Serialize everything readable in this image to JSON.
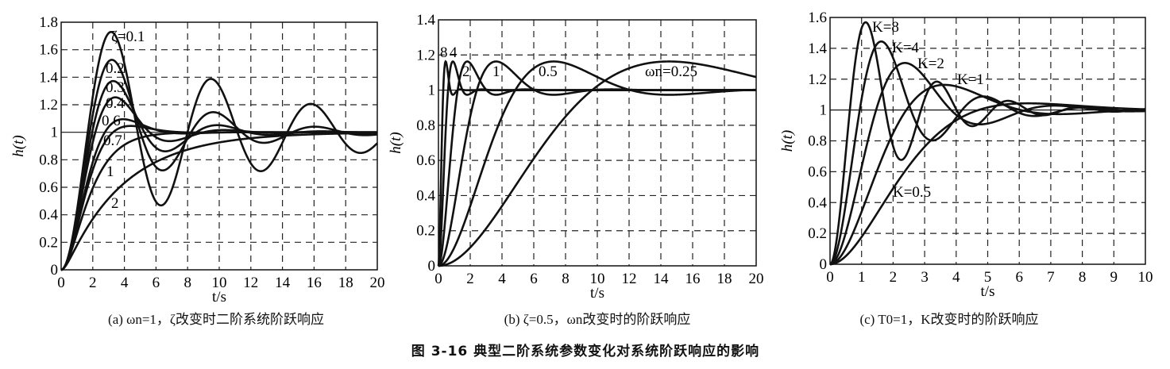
{
  "figure_caption": "图 3-16   典型二阶系统参数变化对系统阶跃响应的影响",
  "chart_data": [
    {
      "type": "line",
      "caption": "(a) ωn=1，ζ改变时二阶系统阶跃响应",
      "xlabel": "t/s",
      "ylabel": "h(t)",
      "xlim": [
        0,
        20
      ],
      "ylim": [
        0,
        1.8
      ],
      "xticks": [
        "0",
        "2",
        "4",
        "6",
        "8",
        "10",
        "12",
        "14",
        "16",
        "18",
        "20"
      ],
      "yticks": [
        "0",
        "0.2",
        "0.4",
        "0.6",
        "0.8",
        "1",
        "1.2",
        "1.4",
        "1.6",
        "1.8"
      ],
      "grid": "dashed",
      "reference_line": 1,
      "series": [
        {
          "name": "ζ=0.1",
          "zeta": 0.1,
          "wn": 1
        },
        {
          "name": "0.2",
          "zeta": 0.2,
          "wn": 1
        },
        {
          "name": "0.3",
          "zeta": 0.3,
          "wn": 1
        },
        {
          "name": "0.4",
          "zeta": 0.4,
          "wn": 1
        },
        {
          "name": "0.6",
          "zeta": 0.6,
          "wn": 1
        },
        {
          "name": "0.7",
          "zeta": 0.7,
          "wn": 1
        },
        {
          "name": "1",
          "zeta": 1,
          "wn": 1
        },
        {
          "name": "2",
          "zeta": 2,
          "wn": 1
        }
      ]
    },
    {
      "type": "line",
      "caption": "(b) ζ=0.5，ωn改变时的阶跃响应",
      "xlabel": "t/s",
      "ylabel": "h(t)",
      "xlim": [
        0,
        20
      ],
      "ylim": [
        0,
        1.4
      ],
      "xticks": [
        "0",
        "2",
        "4",
        "6",
        "8",
        "10",
        "12",
        "14",
        "16",
        "18",
        "20"
      ],
      "yticks": [
        "0",
        "0.2",
        "0.4",
        "0.6",
        "0.8",
        "1",
        "1.2",
        "1.4"
      ],
      "grid": "dashed",
      "reference_line": 1,
      "series": [
        {
          "name": "8",
          "zeta": 0.5,
          "wn": 8
        },
        {
          "name": "4",
          "zeta": 0.5,
          "wn": 4
        },
        {
          "name": "2",
          "zeta": 0.5,
          "wn": 2
        },
        {
          "name": "1",
          "zeta": 0.5,
          "wn": 1
        },
        {
          "name": "0.5",
          "zeta": 0.5,
          "wn": 0.5
        },
        {
          "name": "ωn=0.25",
          "zeta": 0.5,
          "wn": 0.25
        }
      ]
    },
    {
      "type": "line",
      "caption": "(c) T0=1，K改变时的阶跃响应",
      "xlabel": "t/s",
      "ylabel": "h(t)",
      "xlim": [
        0,
        10
      ],
      "ylim": [
        0,
        1.6
      ],
      "xticks": [
        "0",
        "1",
        "2",
        "3",
        "4",
        "5",
        "6",
        "7",
        "8",
        "9",
        "10"
      ],
      "yticks": [
        "0",
        "0.2",
        "0.4",
        "0.6",
        "0.8",
        "1",
        "1.2",
        "1.4",
        "1.6"
      ],
      "grid": "dashed",
      "reference_line": 1,
      "series": [
        {
          "name": "K=8",
          "K": 8,
          "T0": 1
        },
        {
          "name": "K=4",
          "K": 4,
          "T0": 1
        },
        {
          "name": "K=2",
          "K": 2,
          "T0": 1
        },
        {
          "name": "K=1",
          "K": 1,
          "T0": 1
        },
        {
          "name": "K=0.5",
          "K": 0.5,
          "T0": 1
        }
      ]
    }
  ]
}
